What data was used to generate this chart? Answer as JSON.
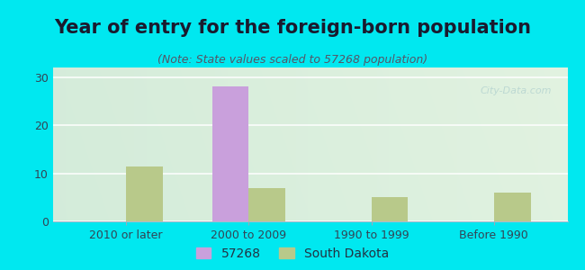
{
  "title": "Year of entry for the foreign-born population",
  "subtitle": "(Note: State values scaled to 57268 population)",
  "categories": [
    "2010 or later",
    "2000 to 2009",
    "1990 to 1999",
    "Before 1990"
  ],
  "series_57268": [
    0,
    28,
    0,
    0
  ],
  "series_sd": [
    11.5,
    7,
    5,
    6
  ],
  "color_57268": "#c9a0dc",
  "color_sd": "#b8c98a",
  "ylim": [
    0,
    32
  ],
  "yticks": [
    0,
    10,
    20,
    30
  ],
  "legend_57268": "57268",
  "legend_sd": "South Dakota",
  "bg_outer": "#00e8f0",
  "bar_width": 0.3,
  "title_fontsize": 15,
  "subtitle_fontsize": 9,
  "tick_fontsize": 9,
  "legend_fontsize": 10,
  "watermark": "City-Data.com"
}
